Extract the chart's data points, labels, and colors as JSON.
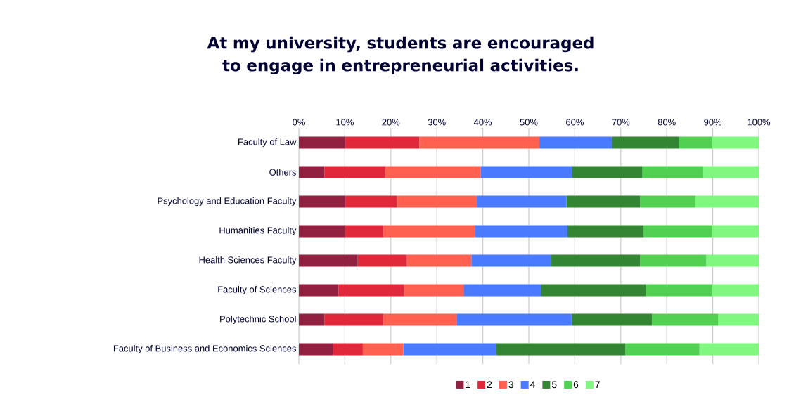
{
  "chart_data": {
    "type": "bar",
    "orientation": "horizontal",
    "stacked": true,
    "title": "At my university, students are encouraged to engage in entrepreneurial activities.",
    "categories": [
      "Faculty of Law",
      "Others",
      "Psychology and Education Faculty",
      "Humanities Faculty",
      "Health Sciences Faculty",
      "Faculty of Sciences",
      "Polytechnic School",
      "Faculty of Business and Economics Sciences"
    ],
    "series": [
      {
        "name": "1",
        "color": "#922040",
        "values": [
          10.2,
          5.6,
          10.2,
          10.0,
          12.8,
          8.6,
          5.6,
          7.4
        ]
      },
      {
        "name": "2",
        "color": "#e0283a",
        "values": [
          16.0,
          13.1,
          11.1,
          8.4,
          10.7,
          14.3,
          12.8,
          6.5
        ]
      },
      {
        "name": "3",
        "color": "#ff604f",
        "values": [
          26.1,
          20.8,
          17.4,
          19.9,
          14.0,
          12.9,
          16.0,
          8.8
        ]
      },
      {
        "name": "4",
        "color": "#4a7aff",
        "values": [
          15.8,
          19.9,
          19.5,
          20.1,
          17.4,
          16.8,
          24.9,
          20.2
        ]
      },
      {
        "name": "5",
        "color": "#338433",
        "values": [
          14.6,
          15.3,
          16.0,
          16.6,
          19.3,
          22.8,
          17.5,
          28.1
        ]
      },
      {
        "name": "6",
        "color": "#52d052",
        "values": [
          7.2,
          13.2,
          12.1,
          14.9,
          14.4,
          14.5,
          14.4,
          16.1
        ]
      },
      {
        "name": "7",
        "color": "#80f880",
        "values": [
          10.1,
          12.1,
          13.7,
          10.1,
          11.4,
          10.1,
          8.8,
          12.9
        ]
      }
    ],
    "xlim": [
      0,
      100
    ],
    "xticks": [
      {
        "value": 0,
        "label": "0%"
      },
      {
        "value": 10,
        "label": "10%"
      },
      {
        "value": 20,
        "label": "20%"
      },
      {
        "value": 30,
        "label": "30%"
      },
      {
        "value": 40,
        "label": "40%"
      },
      {
        "value": 50,
        "label": "50%"
      },
      {
        "value": 60,
        "label": "60%"
      },
      {
        "value": 70,
        "label": "70%"
      },
      {
        "value": 80,
        "label": "80%"
      },
      {
        "value": 90,
        "label": "90%"
      },
      {
        "value": 100,
        "label": "100%"
      }
    ],
    "grid": "x",
    "legend": "bottom"
  }
}
